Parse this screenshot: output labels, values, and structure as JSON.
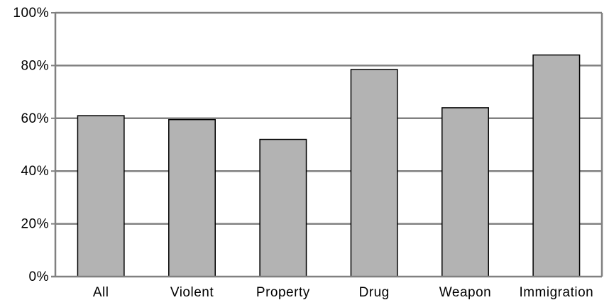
{
  "chart_data": {
    "type": "bar",
    "categories": [
      "All",
      "Violent",
      "Property",
      "Drug",
      "Weapon",
      "Immigration"
    ],
    "values": [
      61,
      59.5,
      52,
      78.5,
      64,
      84
    ],
    "title": "",
    "xlabel": "",
    "ylabel": "",
    "ylim": [
      0,
      100
    ],
    "yticks": [
      "0%",
      "20%",
      "40%",
      "60%",
      "80%",
      "100%"
    ],
    "grid": true,
    "legend": "none",
    "colors": {
      "bar_fill": "#b3b3b3",
      "bar_stroke": "#000000",
      "grid": "#808080",
      "axis": "#808080"
    }
  }
}
